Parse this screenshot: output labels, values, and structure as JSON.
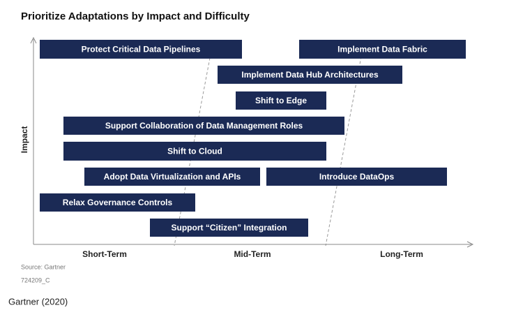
{
  "header": {
    "title": "Prioritize Adaptations by Impact and Difficulty"
  },
  "axes": {
    "y_label": "Impact",
    "x_labels": [
      "Short-Term",
      "Mid-Term",
      "Long-Term"
    ]
  },
  "items": [
    {
      "label": "Protect Critical Data Pipelines"
    },
    {
      "label": "Implement Data Fabric"
    },
    {
      "label": "Implement Data Hub Architectures"
    },
    {
      "label": "Shift to Edge"
    },
    {
      "label": "Support Collaboration of Data Management Roles"
    },
    {
      "label": "Shift to Cloud"
    },
    {
      "label": "Adopt Data Virtualization and APIs"
    },
    {
      "label": "Introduce DataOps"
    },
    {
      "label": "Relax Governance Controls"
    },
    {
      "label": "Support “Citizen” Integration"
    }
  ],
  "footer": {
    "source": "Source: Gartner",
    "id": "724209_C",
    "caption": "Gartner (2020)"
  }
}
